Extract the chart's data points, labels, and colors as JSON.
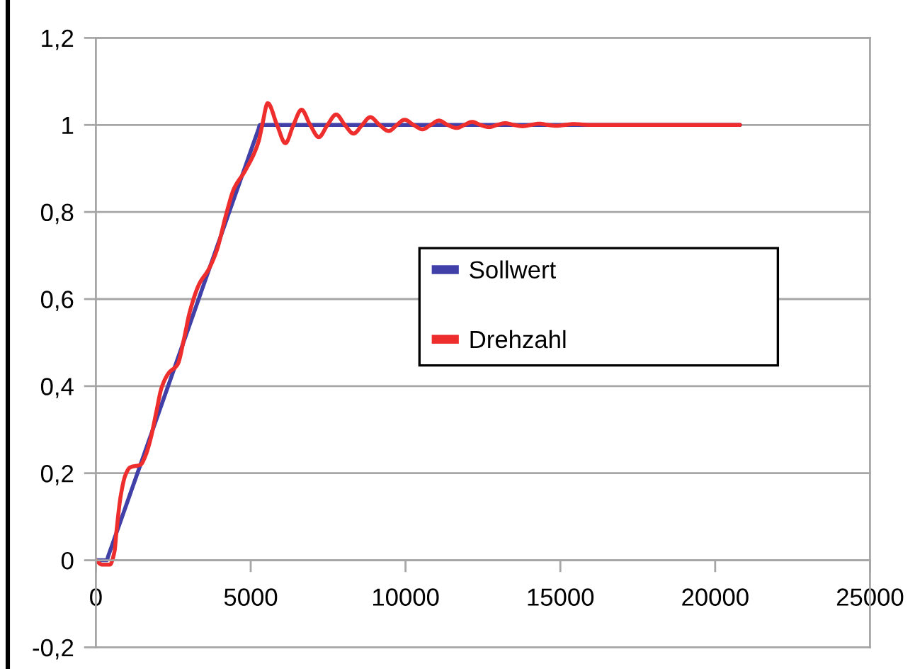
{
  "chart_data": {
    "type": "line",
    "xlim": [
      0,
      25000
    ],
    "xticks": [
      0,
      5000,
      10000,
      15000,
      20000,
      25000
    ],
    "ylim": [
      -0.2,
      1.2
    ],
    "yticks": [
      {
        "value": -0.2,
        "label": "-0,2"
      },
      0,
      {
        "value": 0.2,
        "label": "0,2"
      },
      {
        "value": 0.4,
        "label": "0,4"
      },
      {
        "value": 0.6,
        "label": "0,6"
      },
      {
        "value": 0.8,
        "label": "0,8"
      },
      1,
      {
        "value": 1.2,
        "label": "1,2"
      }
    ],
    "grid": "y",
    "legend": "center right",
    "series": [
      {
        "name": "Sollwert",
        "color": "#4040a8",
        "x": [
          0,
          350,
          400,
          2000,
          5250,
          5300,
          20800
        ],
        "values": [
          0,
          0,
          0.01,
          0.333,
          0.99,
          1,
          1
        ]
      },
      {
        "name": "Drehzahl",
        "color": "#ee2d2d",
        "x": [
          0,
          200,
          450,
          600,
          670,
          800,
          950,
          1100,
          1450,
          1600,
          1760,
          1950,
          2120,
          2350,
          2640,
          2850,
          3030,
          3340,
          3640,
          3900,
          4220,
          4450,
          4830,
          5250,
          5370,
          5550,
          5850,
          6120,
          6380,
          6640,
          6920,
          7200,
          7480,
          7760,
          8040,
          8320,
          8600,
          8860,
          9160,
          9460,
          9720,
          9970,
          10260,
          10550,
          10810,
          11080,
          11360,
          11650,
          11900,
          12150,
          12420,
          12700,
          12960,
          13220,
          13500,
          13780,
          14050,
          14320,
          14600,
          14870,
          15150,
          15420,
          16000,
          20800
        ],
        "values": [
          0,
          -0.01,
          -0.01,
          0.02,
          0.07,
          0.147,
          0.195,
          0.213,
          0.22,
          0.24,
          0.277,
          0.34,
          0.396,
          0.43,
          0.45,
          0.51,
          0.57,
          0.635,
          0.668,
          0.711,
          0.798,
          0.852,
          0.896,
          0.961,
          0.999,
          1.05,
          1.0,
          0.958,
          1.0,
          1.035,
          1.0,
          0.972,
          1.0,
          1.024,
          1.0,
          0.98,
          1.0,
          1.018,
          1.0,
          0.986,
          1.0,
          1.012,
          1.0,
          0.99,
          1.0,
          1.01,
          1.0,
          0.993,
          1.0,
          1.007,
          1.0,
          0.995,
          1.0,
          1.004,
          1.0,
          0.997,
          1.0,
          1.003,
          1.0,
          0.998,
          1.0,
          1.002,
          1.0,
          1.0
        ]
      }
    ]
  }
}
